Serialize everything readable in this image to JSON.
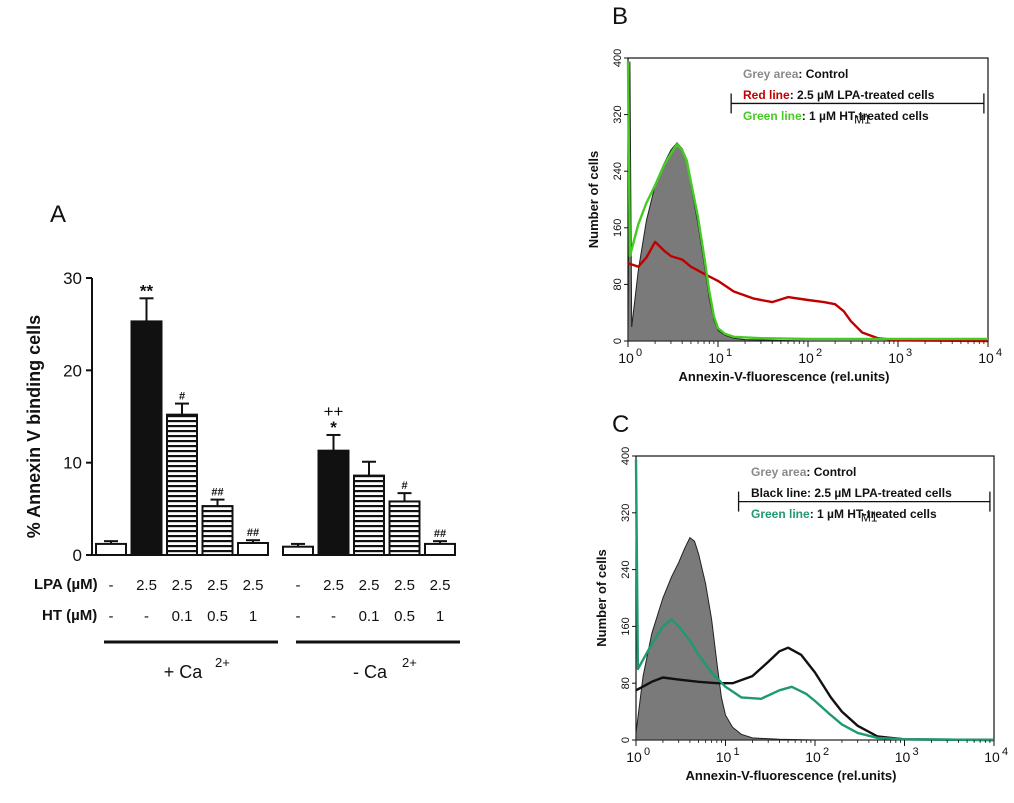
{
  "panels": {
    "a": {
      "letter": "A"
    },
    "b": {
      "letter": "B"
    },
    "c": {
      "letter": "C"
    }
  },
  "chart_data": [
    {
      "type": "bar",
      "panel": "A",
      "ylabel": "% Annexin V binding cells",
      "ylim": [
        0,
        30
      ],
      "yticks": [
        "0",
        "10",
        "20",
        "30"
      ],
      "row_labels": [
        "LPA (µM)",
        "HT (µM)"
      ],
      "groups": [
        {
          "label": "+ Ca",
          "superscript": "2+",
          "bars": [
            {
              "lpa": "-",
              "ht": "-",
              "value": 1.2,
              "error": 0.3,
              "fill": "white",
              "sig": ""
            },
            {
              "lpa": "2.5",
              "ht": "-",
              "value": 25.3,
              "error": 2.5,
              "fill": "black",
              "sig": "**"
            },
            {
              "lpa": "2.5",
              "ht": "0.1",
              "value": 15.2,
              "error": 1.2,
              "fill": "stripes",
              "sig": "#"
            },
            {
              "lpa": "2.5",
              "ht": "0.5",
              "value": 5.3,
              "error": 0.7,
              "fill": "stripes",
              "sig": "##"
            },
            {
              "lpa": "2.5",
              "ht": "1",
              "value": 1.3,
              "error": 0.3,
              "fill": "white",
              "sig": "##"
            }
          ]
        },
        {
          "label": "- Ca",
          "superscript": "2+",
          "bars": [
            {
              "lpa": "-",
              "ht": "-",
              "value": 0.9,
              "error": 0.3,
              "fill": "white",
              "sig": ""
            },
            {
              "lpa": "2.5",
              "ht": "-",
              "value": 11.3,
              "error": 1.7,
              "fill": "black",
              "sig": "*",
              "sig2": "++"
            },
            {
              "lpa": "2.5",
              "ht": "0.1",
              "value": 8.6,
              "error": 1.5,
              "fill": "stripes",
              "sig": ""
            },
            {
              "lpa": "2.5",
              "ht": "0.5",
              "value": 5.8,
              "error": 0.9,
              "fill": "stripes",
              "sig": "#"
            },
            {
              "lpa": "2.5",
              "ht": "1",
              "value": 1.2,
              "error": 0.3,
              "fill": "white",
              "sig": "##"
            }
          ]
        }
      ]
    },
    {
      "type": "area",
      "panel": "B",
      "xlabel": "Annexin-V-fluorescence (rel.units)",
      "ylabel": "Number of cells",
      "xscale": "log",
      "xlim": [
        1,
        10000
      ],
      "ylim": [
        0,
        400
      ],
      "yticks": [
        "0",
        "80",
        "160",
        "240",
        "320",
        "400"
      ],
      "xticks": [
        {
          "base": "10",
          "exp": "0"
        },
        {
          "base": "10",
          "exp": "1"
        },
        {
          "base": "10",
          "exp": "2"
        },
        {
          "base": "10",
          "exp": "3"
        },
        {
          "base": "10",
          "exp": "4"
        }
      ],
      "marker": {
        "label": "M1",
        "range": [
          14,
          9000
        ],
        "y": 340
      },
      "legend": [
        {
          "key": "Grey area",
          "text": ": Control",
          "color": "#8a8a8a"
        },
        {
          "key": "Red line",
          "text": ": 2.5 µM LPA-treated cells",
          "color": "#c00000"
        },
        {
          "key": "Green line",
          "text": ": 1 µM HT-treated cells",
          "color": "#44cc22"
        }
      ],
      "series": [
        {
          "style": "area",
          "color": "#7a7a7a",
          "points": [
            [
              1,
              10
            ],
            [
              1.05,
              395
            ],
            [
              1.1,
              20
            ],
            [
              1.3,
              100
            ],
            [
              1.6,
              170
            ],
            [
              2,
              220
            ],
            [
              2.5,
              250
            ],
            [
              3,
              270
            ],
            [
              3.5,
              280
            ],
            [
              4,
              272
            ],
            [
              4.5,
              255
            ],
            [
              5,
              220
            ],
            [
              6,
              165
            ],
            [
              7,
              110
            ],
            [
              8,
              60
            ],
            [
              9,
              30
            ],
            [
              10,
              15
            ],
            [
              12,
              8
            ],
            [
              15,
              4
            ],
            [
              20,
              2
            ],
            [
              40,
              1
            ],
            [
              100,
              0
            ],
            [
              10000,
              0
            ]
          ]
        },
        {
          "style": "line",
          "color": "#c00000",
          "points": [
            [
              1,
              110
            ],
            [
              1.3,
              105
            ],
            [
              1.6,
              118
            ],
            [
              2,
              140
            ],
            [
              2.5,
              128
            ],
            [
              3,
              120
            ],
            [
              4,
              115
            ],
            [
              5,
              105
            ],
            [
              7,
              95
            ],
            [
              10,
              85
            ],
            [
              15,
              70
            ],
            [
              25,
              60
            ],
            [
              40,
              55
            ],
            [
              60,
              62
            ],
            [
              100,
              58
            ],
            [
              150,
              55
            ],
            [
              200,
              52
            ],
            [
              250,
              42
            ],
            [
              300,
              28
            ],
            [
              400,
              12
            ],
            [
              600,
              4
            ],
            [
              1000,
              1
            ],
            [
              10000,
              0
            ]
          ]
        },
        {
          "style": "line",
          "color": "#44cc22",
          "points": [
            [
              1,
              395
            ],
            [
              1.05,
              120
            ],
            [
              1.3,
              165
            ],
            [
              1.6,
              195
            ],
            [
              2,
              220
            ],
            [
              2.5,
              248
            ],
            [
              3,
              265
            ],
            [
              3.5,
              278
            ],
            [
              4,
              270
            ],
            [
              4.5,
              255
            ],
            [
              5,
              225
            ],
            [
              6,
              175
            ],
            [
              7,
              120
            ],
            [
              8,
              70
            ],
            [
              9,
              35
            ],
            [
              10,
              18
            ],
            [
              12,
              10
            ],
            [
              15,
              6
            ],
            [
              30,
              4
            ],
            [
              100,
              3
            ],
            [
              1000,
              3
            ],
            [
              10000,
              3
            ]
          ]
        }
      ]
    },
    {
      "type": "area",
      "panel": "C",
      "xlabel": "Annexin-V-fluorescence (rel.units)",
      "ylabel": "Number of cells",
      "xscale": "log",
      "xlim": [
        1,
        10000
      ],
      "ylim": [
        0,
        400
      ],
      "yticks": [
        "0",
        "80",
        "160",
        "240",
        "320",
        "400"
      ],
      "xticks": [
        {
          "base": "10",
          "exp": "0"
        },
        {
          "base": "10",
          "exp": "1"
        },
        {
          "base": "10",
          "exp": "2"
        },
        {
          "base": "10",
          "exp": "3"
        },
        {
          "base": "10",
          "exp": "4"
        }
      ],
      "marker": {
        "label": "M1",
        "range": [
          14,
          9000
        ],
        "y": 340
      },
      "legend": [
        {
          "key": "Grey area",
          "text": ": Control",
          "color": "#8a8a8a"
        },
        {
          "key": "Black line",
          "text": ": 2.5 µM LPA-treated cells",
          "color": "#111111"
        },
        {
          "key": "Green line",
          "text": ": 1 µM HT-treated cells",
          "color": "#1e9a6e"
        }
      ],
      "series": [
        {
          "style": "area",
          "color": "#7a7a7a",
          "points": [
            [
              1,
              10
            ],
            [
              1.2,
              90
            ],
            [
              1.5,
              150
            ],
            [
              2,
              200
            ],
            [
              2.5,
              230
            ],
            [
              3,
              250
            ],
            [
              3.5,
              270
            ],
            [
              4,
              285
            ],
            [
              4.5,
              280
            ],
            [
              5,
              262
            ],
            [
              6,
              220
            ],
            [
              7,
              170
            ],
            [
              8,
              110
            ],
            [
              9,
              60
            ],
            [
              10,
              35
            ],
            [
              12,
              18
            ],
            [
              15,
              8
            ],
            [
              20,
              3
            ],
            [
              40,
              1
            ],
            [
              100,
              0
            ],
            [
              10000,
              0
            ]
          ]
        },
        {
          "style": "line",
          "color": "#111111",
          "points": [
            [
              1,
              70
            ],
            [
              1.5,
              82
            ],
            [
              2,
              88
            ],
            [
              3,
              85
            ],
            [
              5,
              82
            ],
            [
              8,
              80
            ],
            [
              12,
              80
            ],
            [
              20,
              90
            ],
            [
              30,
              110
            ],
            [
              40,
              125
            ],
            [
              50,
              130
            ],
            [
              70,
              120
            ],
            [
              100,
              95
            ],
            [
              150,
              60
            ],
            [
              200,
              40
            ],
            [
              300,
              20
            ],
            [
              500,
              5
            ],
            [
              1000,
              1
            ],
            [
              10000,
              0
            ]
          ]
        },
        {
          "style": "line",
          "color": "#1e9a6e",
          "points": [
            [
              1,
              395
            ],
            [
              1.05,
              100
            ],
            [
              1.5,
              135
            ],
            [
              2,
              160
            ],
            [
              2.5,
              170
            ],
            [
              3,
              160
            ],
            [
              4,
              140
            ],
            [
              5,
              120
            ],
            [
              7,
              95
            ],
            [
              10,
              75
            ],
            [
              15,
              60
            ],
            [
              25,
              58
            ],
            [
              40,
              70
            ],
            [
              55,
              75
            ],
            [
              80,
              65
            ],
            [
              100,
              55
            ],
            [
              150,
              35
            ],
            [
              200,
              22
            ],
            [
              300,
              10
            ],
            [
              500,
              3
            ],
            [
              1000,
              1
            ],
            [
              10000,
              0
            ]
          ]
        }
      ]
    }
  ]
}
